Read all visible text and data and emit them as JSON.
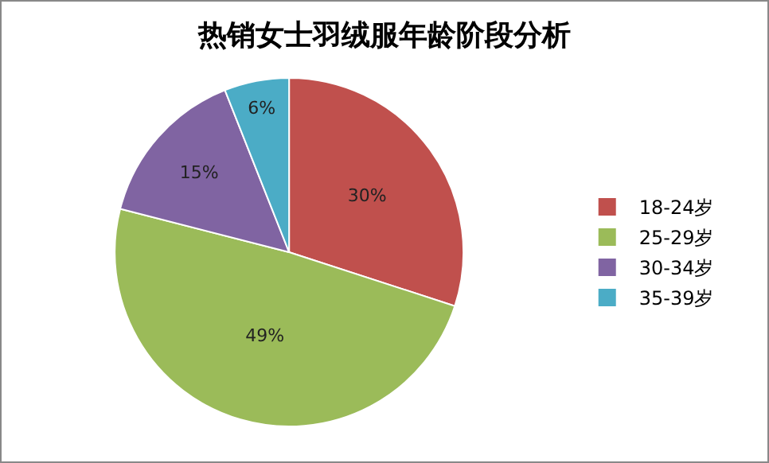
{
  "chart_data": {
    "type": "pie",
    "title": "热销女士羽绒服年龄阶段分析",
    "categories": [
      "18-24岁",
      "25-29岁",
      "30-34岁",
      "35-39岁"
    ],
    "values": [
      30,
      49,
      15,
      6
    ],
    "colors": [
      "#c0504d",
      "#9bbb59",
      "#8064a2",
      "#4bacc6"
    ],
    "value_labels": [
      "30%",
      "49%",
      "15%",
      "6%"
    ],
    "legend": "right"
  }
}
